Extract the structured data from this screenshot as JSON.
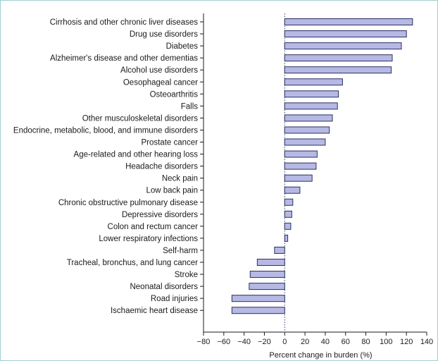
{
  "chart_data": {
    "type": "bar",
    "orientation": "horizontal",
    "categories": [
      "Cirrhosis and other chronic liver diseases",
      "Drug use disorders",
      "Diabetes",
      "Alzheimer's disease and other dementias",
      "Alcohol use disorders",
      "Oesophageal cancer",
      "Osteoarthritis",
      "Falls",
      "Other musculoskeletal disorders",
      "Endocrine, metabolic, blood, and immune disorders",
      "Prostate cancer",
      "Age-related and other hearing loss",
      "Headache disorders",
      "Neck pain",
      "Low back pain",
      "Chronic obstructive pulmonary disease",
      "Depressive disorders",
      "Colon and rectum cancer",
      "Lower respiratory infections",
      "Self-harm",
      "Tracheal, bronchus, and lung cancer",
      "Stroke",
      "Neonatal disorders",
      "Road injuries",
      "Ischaemic heart disease"
    ],
    "values": [
      126,
      120,
      115,
      106,
      105,
      57,
      53,
      52,
      47,
      44,
      40,
      32,
      31,
      27,
      15,
      8,
      7,
      6,
      3,
      -10,
      -27,
      -34,
      -35,
      -52,
      -52
    ],
    "xlabel": "Percent change in burden (%)",
    "ylabel": "",
    "xlim": [
      -80,
      140
    ],
    "xticks": [
      -80,
      -60,
      -40,
      -20,
      0,
      20,
      40,
      60,
      80,
      100,
      120,
      140
    ],
    "zero_line": "dotted",
    "bar_color": "#b6b9e3",
    "bar_edge_color": "#2b2f63",
    "frame_color": "#9fd0d3"
  }
}
